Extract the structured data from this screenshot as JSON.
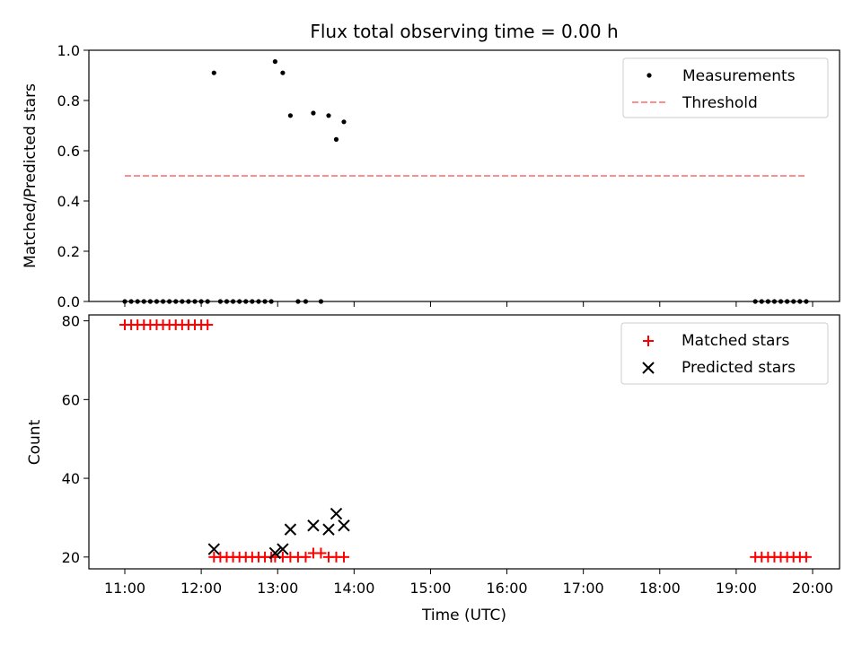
{
  "chart_data": [
    {
      "type": "scatter",
      "title": "Flux total observing time = 0.00 h",
      "ylabel": "Matched/Predicted stars",
      "xlabel": "",
      "ylim": [
        0,
        1.0
      ],
      "yticks": [
        "0.0",
        "0.2",
        "0.4",
        "0.6",
        "0.8",
        "1.0"
      ],
      "legend_position": "top-right",
      "legend": [
        "Measurements",
        "Threshold"
      ],
      "threshold": {
        "name": "Threshold",
        "value": 0.5,
        "x_start": "11:00",
        "x_end": "19:55",
        "color": "#ff7f7f"
      },
      "series": [
        {
          "name": "Measurements",
          "color": "#000000",
          "points": [
            [
              "11:00",
              0
            ],
            [
              "11:05",
              0
            ],
            [
              "11:10",
              0
            ],
            [
              "11:15",
              0
            ],
            [
              "11:20",
              0
            ],
            [
              "11:25",
              0
            ],
            [
              "11:30",
              0
            ],
            [
              "11:35",
              0
            ],
            [
              "11:40",
              0
            ],
            [
              "11:45",
              0
            ],
            [
              "11:50",
              0
            ],
            [
              "11:55",
              0
            ],
            [
              "12:00",
              0
            ],
            [
              "12:05",
              0
            ],
            [
              "12:10",
              0.91
            ],
            [
              "12:15",
              0
            ],
            [
              "12:20",
              0
            ],
            [
              "12:25",
              0
            ],
            [
              "12:30",
              0
            ],
            [
              "12:35",
              0
            ],
            [
              "12:40",
              0
            ],
            [
              "12:45",
              0
            ],
            [
              "12:50",
              0
            ],
            [
              "12:55",
              0
            ],
            [
              "12:58",
              0.955
            ],
            [
              "13:04",
              0.91
            ],
            [
              "13:10",
              0.74
            ],
            [
              "13:16",
              0
            ],
            [
              "13:22",
              0
            ],
            [
              "13:28",
              0.75
            ],
            [
              "13:34",
              0
            ],
            [
              "13:40",
              0.74
            ],
            [
              "13:46",
              0.645
            ],
            [
              "13:52",
              0.715
            ],
            [
              "19:15",
              0
            ],
            [
              "19:20",
              0
            ],
            [
              "19:25",
              0
            ],
            [
              "19:30",
              0
            ],
            [
              "19:35",
              0
            ],
            [
              "19:40",
              0
            ],
            [
              "19:45",
              0
            ],
            [
              "19:50",
              0
            ],
            [
              "19:55",
              0
            ]
          ]
        }
      ]
    },
    {
      "type": "scatter",
      "title": "",
      "ylabel": "Count",
      "xlabel": "Time (UTC)",
      "ylim": [
        17,
        81.5
      ],
      "yticks": [
        "20",
        "40",
        "60",
        "80"
      ],
      "xticks": [
        "11:00",
        "12:00",
        "13:00",
        "14:00",
        "15:00",
        "16:00",
        "17:00",
        "18:00",
        "19:00",
        "20:00"
      ],
      "legend_position": "top-right",
      "legend": [
        "Matched stars",
        "Predicted stars"
      ],
      "series": [
        {
          "name": "Matched stars",
          "color": "#ff0000",
          "marker": "plus",
          "points": [
            [
              "11:00",
              79
            ],
            [
              "11:05",
              79
            ],
            [
              "11:10",
              79
            ],
            [
              "11:15",
              79
            ],
            [
              "11:20",
              79
            ],
            [
              "11:25",
              79
            ],
            [
              "11:30",
              79
            ],
            [
              "11:35",
              79
            ],
            [
              "11:40",
              79
            ],
            [
              "11:45",
              79
            ],
            [
              "11:50",
              79
            ],
            [
              "11:55",
              79
            ],
            [
              "12:00",
              79
            ],
            [
              "12:05",
              79
            ],
            [
              "12:10",
              20
            ],
            [
              "12:15",
              20
            ],
            [
              "12:20",
              20
            ],
            [
              "12:25",
              20
            ],
            [
              "12:30",
              20
            ],
            [
              "12:35",
              20
            ],
            [
              "12:40",
              20
            ],
            [
              "12:45",
              20
            ],
            [
              "12:50",
              20
            ],
            [
              "12:55",
              20
            ],
            [
              "12:58",
              20
            ],
            [
              "13:04",
              20
            ],
            [
              "13:10",
              20
            ],
            [
              "13:16",
              20
            ],
            [
              "13:22",
              20
            ],
            [
              "13:28",
              21
            ],
            [
              "13:34",
              21
            ],
            [
              "13:40",
              20
            ],
            [
              "13:46",
              20
            ],
            [
              "13:52",
              20
            ],
            [
              "19:15",
              20
            ],
            [
              "19:20",
              20
            ],
            [
              "19:25",
              20
            ],
            [
              "19:30",
              20
            ],
            [
              "19:35",
              20
            ],
            [
              "19:40",
              20
            ],
            [
              "19:45",
              20
            ],
            [
              "19:50",
              20
            ],
            [
              "19:55",
              20
            ]
          ]
        },
        {
          "name": "Predicted stars",
          "color": "#000000",
          "marker": "x",
          "points": [
            [
              "12:10",
              22
            ],
            [
              "12:58",
              21
            ],
            [
              "13:04",
              22
            ],
            [
              "13:10",
              27
            ],
            [
              "13:28",
              28
            ],
            [
              "13:40",
              27
            ],
            [
              "13:46",
              31
            ],
            [
              "13:52",
              28
            ]
          ]
        }
      ]
    }
  ]
}
